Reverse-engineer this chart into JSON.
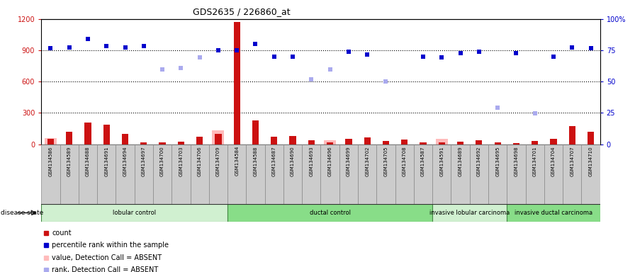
{
  "title": "GDS2635 / 226860_at",
  "samples": [
    "GSM134586",
    "GSM134589",
    "GSM134688",
    "GSM134691",
    "GSM134694",
    "GSM134697",
    "GSM134700",
    "GSM134703",
    "GSM134706",
    "GSM134709",
    "GSM134584",
    "GSM134588",
    "GSM134687",
    "GSM134690",
    "GSM134693",
    "GSM134696",
    "GSM134699",
    "GSM134702",
    "GSM134705",
    "GSM134708",
    "GSM134587",
    "GSM134591",
    "GSM134689",
    "GSM134692",
    "GSM134695",
    "GSM134698",
    "GSM134701",
    "GSM134704",
    "GSM134707",
    "GSM134710"
  ],
  "count_values": [
    50,
    120,
    210,
    185,
    100,
    15,
    15,
    25,
    70,
    100,
    1170,
    230,
    70,
    75,
    35,
    15,
    50,
    65,
    30,
    45,
    20,
    15,
    25,
    40,
    20,
    10,
    30,
    50,
    170,
    120
  ],
  "absent_value": [
    55,
    0,
    0,
    0,
    0,
    0,
    0,
    0,
    0,
    130,
    0,
    0,
    0,
    0,
    0,
    35,
    0,
    0,
    0,
    0,
    0,
    50,
    0,
    0,
    0,
    0,
    0,
    0,
    0,
    0
  ],
  "rank_present": [
    920,
    930,
    1010,
    940,
    930,
    940,
    null,
    null,
    null,
    900,
    900,
    960,
    840,
    840,
    null,
    null,
    890,
    860,
    null,
    null,
    840,
    830,
    870,
    890,
    null,
    870,
    null,
    840,
    930,
    920
  ],
  "rank_absent": [
    null,
    null,
    null,
    null,
    null,
    null,
    720,
    730,
    830,
    null,
    null,
    null,
    null,
    null,
    620,
    720,
    null,
    null,
    600,
    null,
    null,
    null,
    null,
    null,
    350,
    null,
    295,
    null,
    null,
    null
  ],
  "groups": [
    {
      "label": "lobular control",
      "start": 0,
      "end": 10,
      "color": "#d0f0d0"
    },
    {
      "label": "ductal control",
      "start": 10,
      "end": 21,
      "color": "#88dd88"
    },
    {
      "label": "invasive lobular carcinoma",
      "start": 21,
      "end": 25,
      "color": "#d0f0d0"
    },
    {
      "label": "invasive ductal carcinoma",
      "start": 25,
      "end": 30,
      "color": "#88dd88"
    }
  ],
  "ylim_left": [
    0,
    1200
  ],
  "ylim_right": [
    0,
    100
  ],
  "yticks_left": [
    0,
    300,
    600,
    900,
    1200
  ],
  "yticks_right": [
    0,
    25,
    50,
    75,
    100
  ],
  "bar_color": "#cc1111",
  "absent_bar_color": "#ffbbbb",
  "rank_present_color": "#0000cc",
  "rank_absent_color": "#aaaaee",
  "tick_box_color": "#cccccc",
  "bg_color": "#ffffff",
  "legend": [
    "count",
    "percentile rank within the sample",
    "value, Detection Call = ABSENT",
    "rank, Detection Call = ABSENT"
  ]
}
